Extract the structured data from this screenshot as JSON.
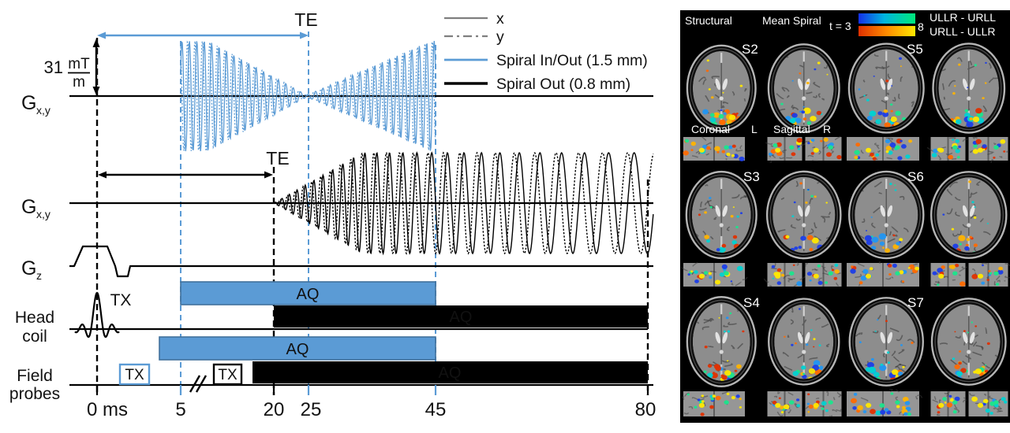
{
  "pulse_diagram": {
    "gradient_amplitude": {
      "value": "31",
      "numerator": "mT",
      "denominator": "m"
    },
    "te_spiral_inout": "TE",
    "te_spiral_out": "TE",
    "row_labels": {
      "gxy_inout": {
        "main": "G",
        "sub": "x,y"
      },
      "gxy_out": {
        "main": "G",
        "sub": "x,y"
      },
      "gz": {
        "main": "G",
        "sub": "z"
      },
      "head_coil": [
        "Head",
        "coil"
      ],
      "field_probes": [
        "Field",
        "probes"
      ]
    },
    "legend": {
      "items": [
        {
          "label": "x",
          "style": "solid-gray"
        },
        {
          "label": "y",
          "style": "dashdot-gray"
        },
        {
          "label": "Spiral In/Out (1.5 mm)",
          "style": "solid-blue",
          "color": "#5B9BD5"
        },
        {
          "label": "Spiral Out (0.8 mm)",
          "style": "solid-black",
          "color": "#000000"
        }
      ]
    },
    "events": {
      "head_coil": {
        "tx": "TX",
        "aq_inout": "AQ",
        "aq_out": "AQ"
      },
      "field_probes": {
        "tx1": "TX",
        "tx2": "TX",
        "aq_inout": "AQ",
        "aq_out": "AQ"
      }
    },
    "time_axis": {
      "unit": "ms",
      "ticks": [
        "0 ms",
        "5",
        "20",
        "25",
        "45",
        "80"
      ],
      "tick_values_ms": [
        0,
        5,
        20,
        25,
        45,
        80
      ]
    },
    "colors": {
      "spiral_inout": "#5B9BD5",
      "spiral_inout_border": "#41719C",
      "spiral_out": "#000000",
      "gray_trace": "#7f7f7f"
    }
  },
  "brain_panel": {
    "column_headers": {
      "structural": "Structural",
      "mean_spiral": "Mean Spiral"
    },
    "stat_threshold": {
      "min": "t = 3",
      "max": "8"
    },
    "contrasts": [
      {
        "label": "ULLR - URLL",
        "colormap": "blue-green"
      },
      {
        "label": "URLL - ULLR",
        "colormap": "red-yellow"
      }
    ],
    "orientation": {
      "coronal": "Coronal",
      "left": "L",
      "sagittal": "Sagittal",
      "right": "R"
    },
    "slice_labels": [
      "S2",
      "S5",
      "S3",
      "S6",
      "S4",
      "S7"
    ],
    "activation_colors": {
      "cool": [
        "#1b3de8",
        "#2196f3",
        "#00d2d2",
        "#19e68c"
      ],
      "warm": [
        "#e03000",
        "#ff6a00",
        "#ffb300",
        "#ffe800"
      ]
    }
  }
}
